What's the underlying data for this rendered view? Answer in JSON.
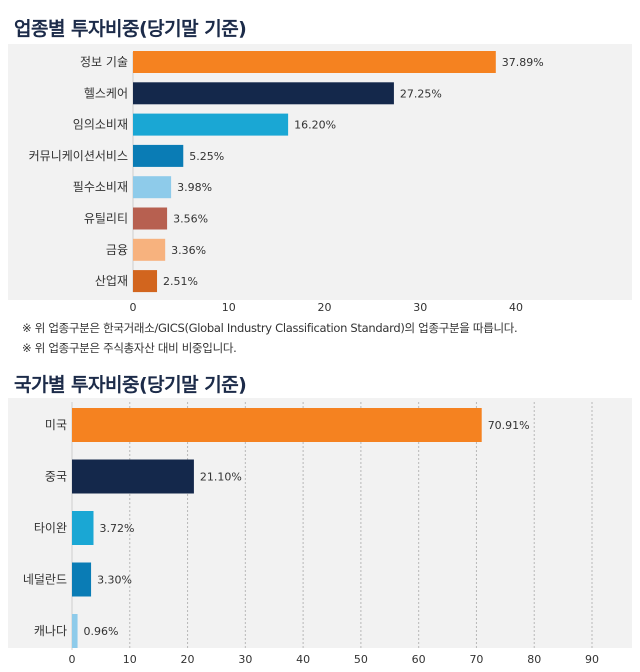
{
  "sector": {
    "title": "업종별 투자비중(당기말 기준)",
    "notes": [
      "※ 위 업종구분은 한국거래소/GICS(Global Industry Classification Standard)의 업종구분을 따릅니다.",
      "※ 위 업종구분은 주식총자산 대비 비중입니다."
    ]
  },
  "country": {
    "title": "국가별 투자비중(당기말 기준)"
  },
  "chart_data": [
    {
      "type": "bar",
      "orientation": "horizontal",
      "title": "업종별 투자비중(당기말 기준)",
      "categories": [
        "정보 기술",
        "헬스케어",
        "임의소비재",
        "커뮤니케이션서비스",
        "필수소비재",
        "유틸리티",
        "금융",
        "산업재"
      ],
      "values": [
        37.89,
        27.25,
        16.2,
        5.25,
        3.98,
        3.56,
        3.36,
        2.51
      ],
      "value_labels": [
        "37.89%",
        "27.25%",
        "16.20%",
        "5.25%",
        "3.98%",
        "3.56%",
        "3.36%",
        "2.51%"
      ],
      "colors": [
        "#f58220",
        "#14284b",
        "#1aa7d4",
        "#0a7cb5",
        "#8ecbea",
        "#b76050",
        "#f7b27e",
        "#d2651e"
      ],
      "xlim": [
        0,
        40
      ],
      "xticks": [
        0,
        10,
        20,
        30,
        40
      ],
      "grid": false
    },
    {
      "type": "bar",
      "orientation": "horizontal",
      "title": "국가별 투자비중(당기말 기준)",
      "categories": [
        "미국",
        "중국",
        "타이완",
        "네덜란드",
        "캐나다"
      ],
      "values": [
        70.91,
        21.1,
        3.72,
        3.3,
        0.96
      ],
      "value_labels": [
        "70.91%",
        "21.10%",
        "3.72%",
        "3.30%",
        "0.96%"
      ],
      "colors": [
        "#f58220",
        "#14284b",
        "#1aa7d4",
        "#0a7cb5",
        "#8ecbea"
      ],
      "xlim": [
        0,
        90
      ],
      "xticks": [
        0,
        10,
        20,
        30,
        40,
        50,
        60,
        70,
        80,
        90
      ],
      "grid": true
    }
  ]
}
